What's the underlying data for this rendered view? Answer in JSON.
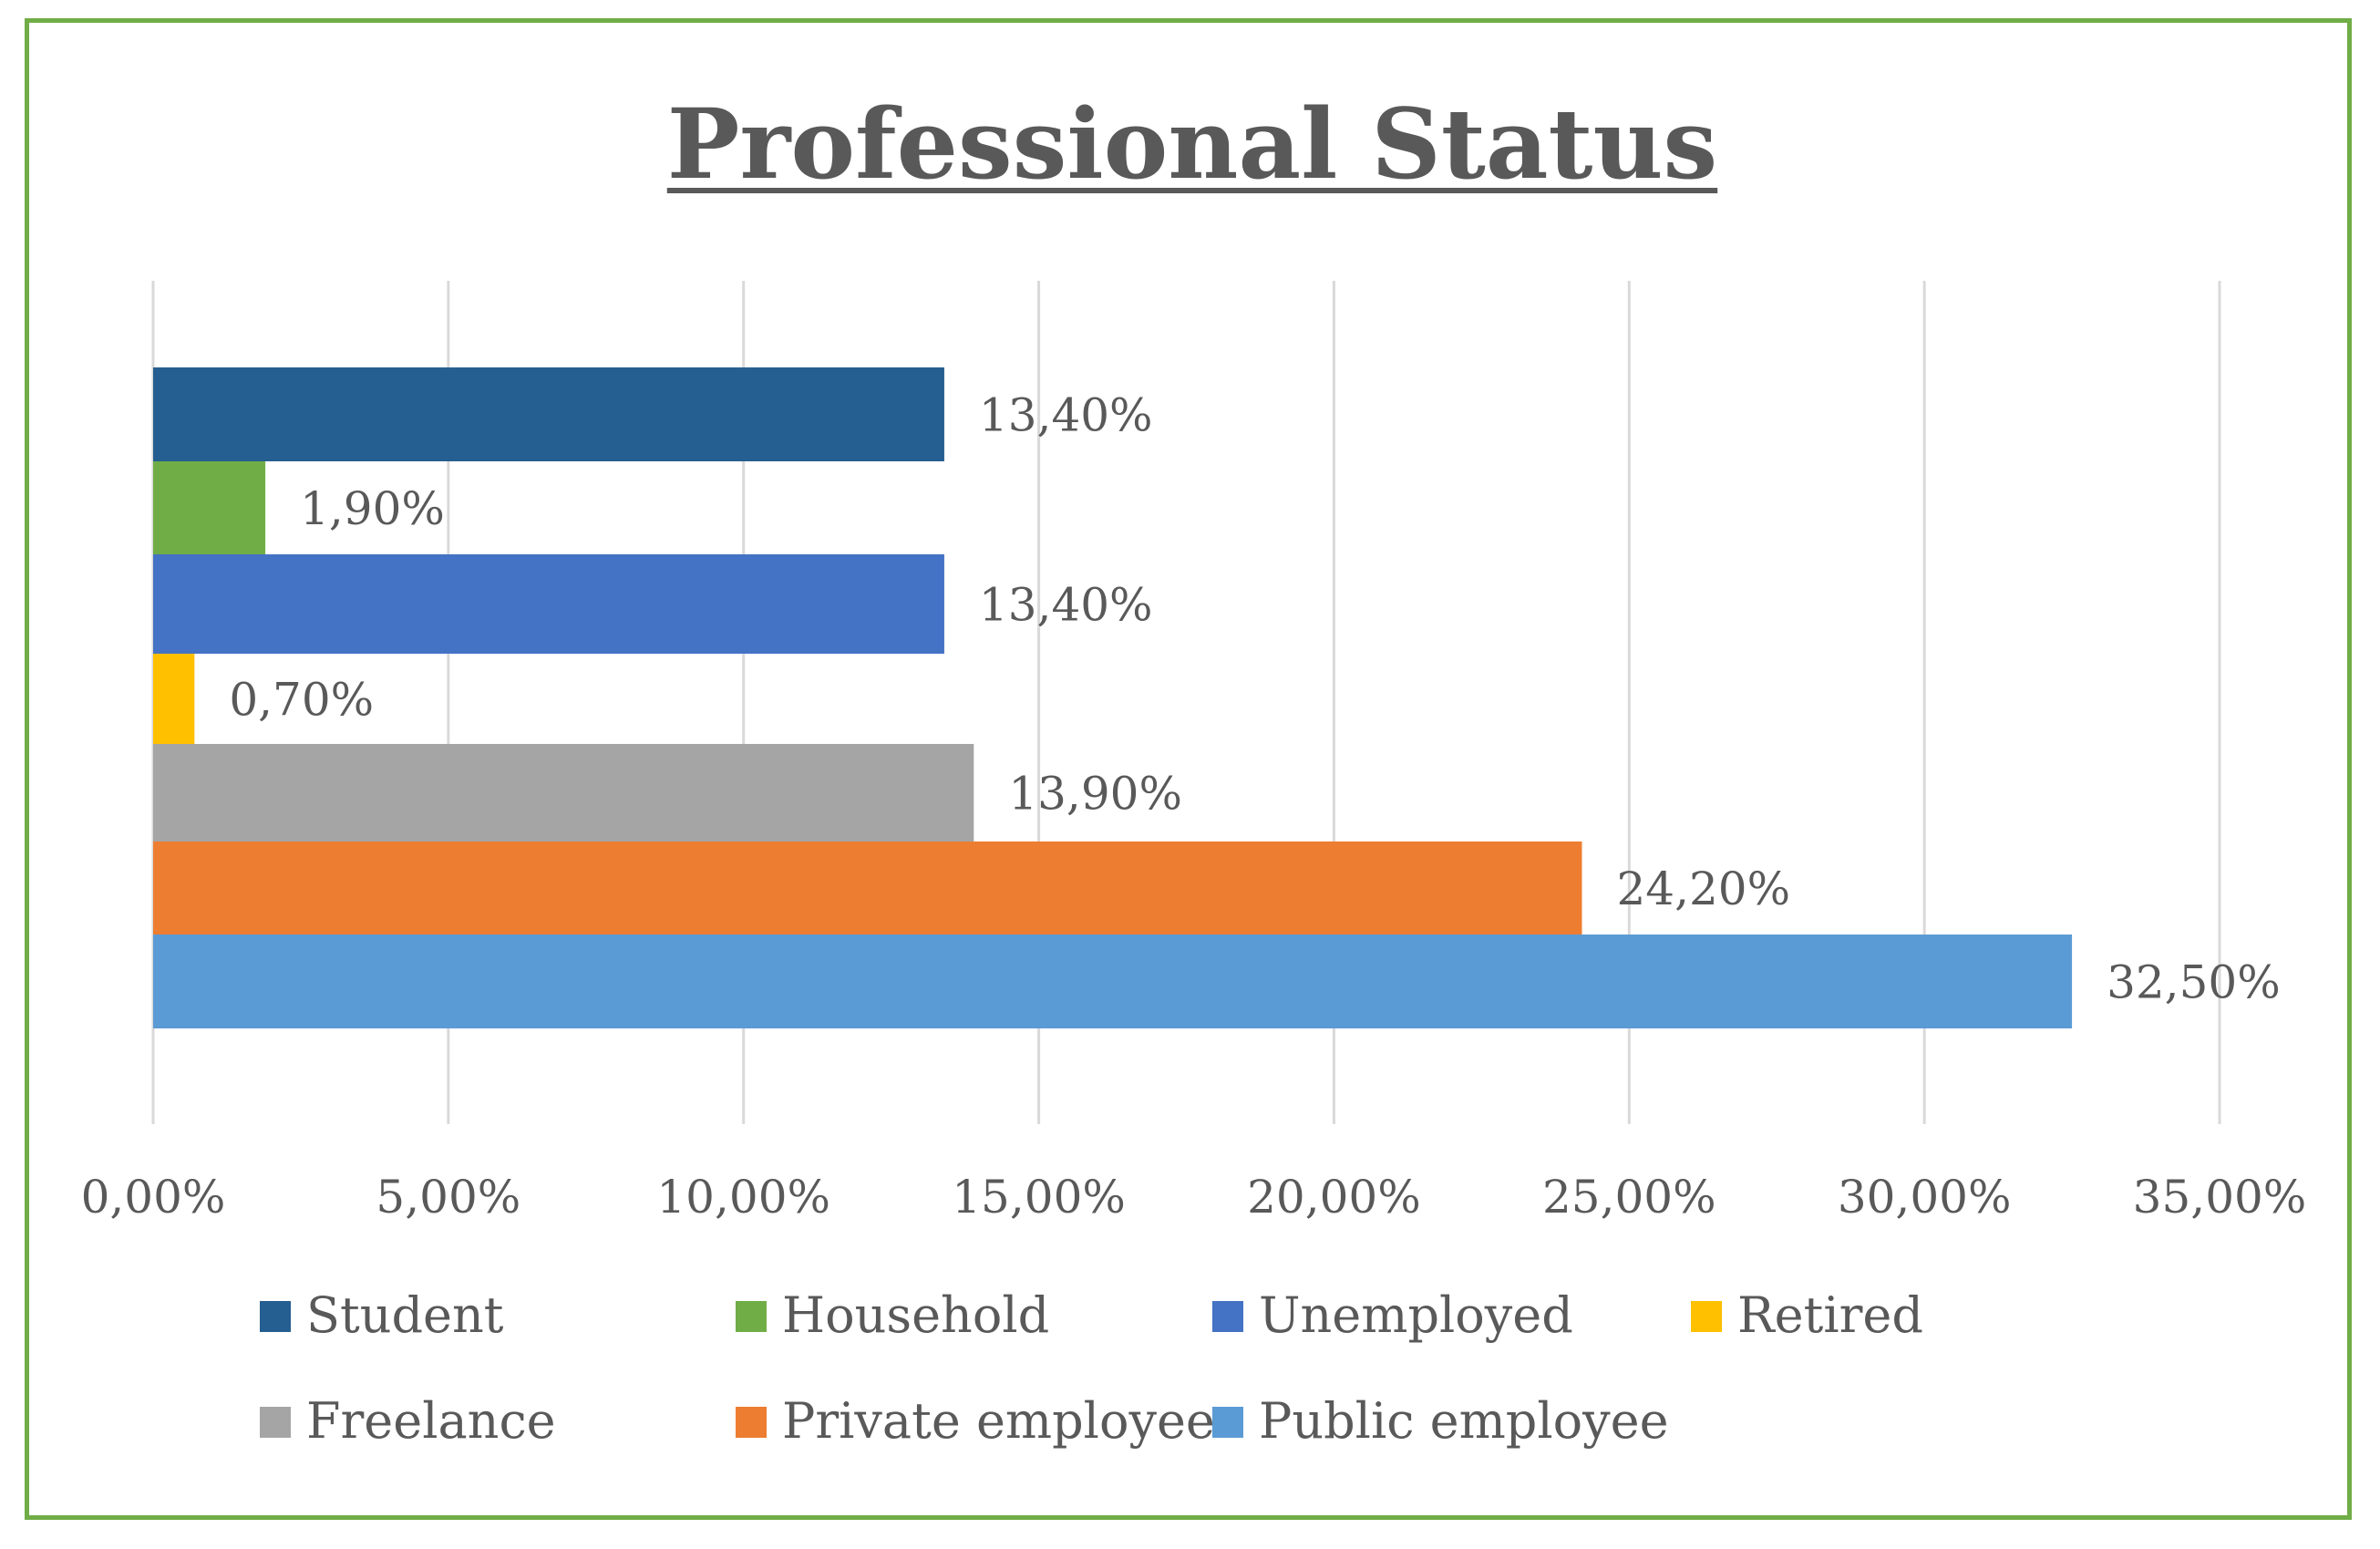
{
  "chart_data": {
    "type": "bar",
    "orientation": "horizontal",
    "title": "Professional Status",
    "xlabel": "",
    "ylabel": "",
    "xlim": [
      0,
      35
    ],
    "ticks": [
      "0,00%",
      "5,00%",
      "10,00%",
      "15,00%",
      "20,00%",
      "25,00%",
      "30,00%",
      "35,00%"
    ],
    "grid": "vertical",
    "legend_position": "bottom",
    "series": [
      {
        "name": "Student",
        "value": 13.4,
        "label": "13,40%",
        "color": "#255e91"
      },
      {
        "name": "Household",
        "value": 1.9,
        "label": "1,90%",
        "color": "#70ad47"
      },
      {
        "name": "Unemployed",
        "value": 13.4,
        "label": "13,40%",
        "color": "#4472c4"
      },
      {
        "name": "Retired",
        "value": 0.7,
        "label": "0,70%",
        "color": "#ffc000"
      },
      {
        "name": "Freelance",
        "value": 13.9,
        "label": "13,90%",
        "color": "#a5a5a5"
      },
      {
        "name": "Private employee",
        "value": 24.2,
        "label": "24,20%",
        "color": "#ed7d31"
      },
      {
        "name": "Public employee",
        "value": 32.5,
        "label": "32,50%",
        "color": "#5b9bd5"
      }
    ]
  },
  "colors": {
    "border": "#70ad47",
    "gridline": "#d9d9d9",
    "text": "#595959"
  }
}
